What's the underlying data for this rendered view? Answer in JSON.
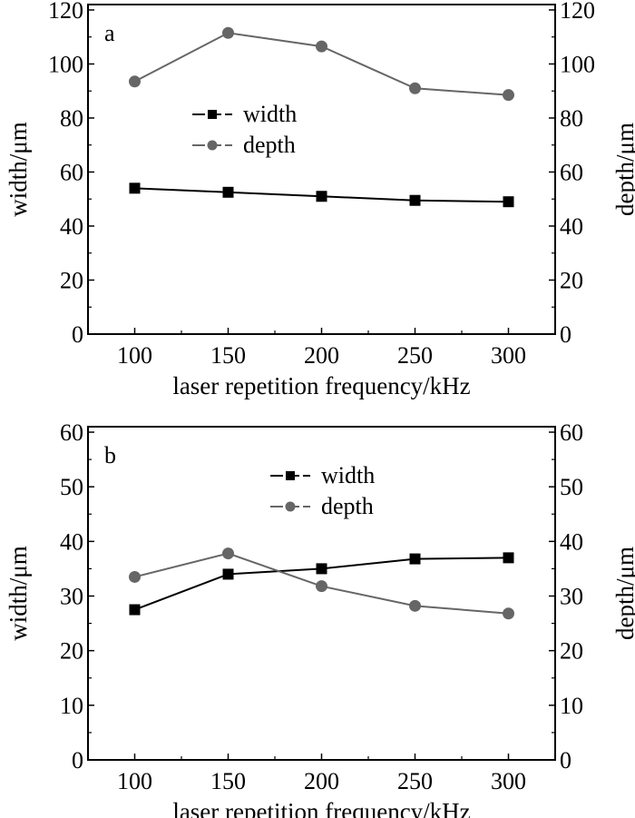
{
  "chart_data": [
    {
      "type": "line",
      "panel_label": "a",
      "x": [
        100,
        150,
        200,
        250,
        300
      ],
      "xlabel": "laser repetition frequency/kHz",
      "ylabel": "width/μm",
      "y2label": "depth/μm",
      "xlim": [
        75,
        325
      ],
      "ylim": [
        0,
        122
      ],
      "yticks": [
        0,
        20,
        40,
        60,
        80,
        100,
        120
      ],
      "xticks": [
        100,
        150,
        200,
        250,
        300
      ],
      "grid": false,
      "legend_placement": "center-left",
      "series": [
        {
          "name": "width",
          "marker": "square",
          "color": "#000000",
          "axis": "left",
          "values": [
            54,
            52.5,
            51,
            49.5,
            49
          ]
        },
        {
          "name": "depth",
          "marker": "circle",
          "color": "#666666",
          "axis": "right",
          "values": [
            93.5,
            111.5,
            106.5,
            91,
            88.5
          ]
        }
      ]
    },
    {
      "type": "line",
      "panel_label": "b",
      "x": [
        100,
        150,
        200,
        250,
        300
      ],
      "xlabel": "laser repetition frequency/kHz",
      "ylabel": "width/μm",
      "y2label": "depth/μm",
      "xlim": [
        75,
        325
      ],
      "ylim": [
        0,
        61
      ],
      "yticks": [
        0,
        10,
        20,
        30,
        40,
        50,
        60
      ],
      "xticks": [
        100,
        150,
        200,
        250,
        300
      ],
      "grid": false,
      "legend_placement": "top-center",
      "series": [
        {
          "name": "width",
          "marker": "square",
          "color": "#000000",
          "axis": "left",
          "values": [
            27.5,
            34,
            35,
            36.8,
            37
          ]
        },
        {
          "name": "depth",
          "marker": "circle",
          "color": "#666666",
          "axis": "right",
          "values": [
            33.5,
            37.8,
            31.8,
            28.2,
            26.8
          ]
        }
      ]
    }
  ]
}
